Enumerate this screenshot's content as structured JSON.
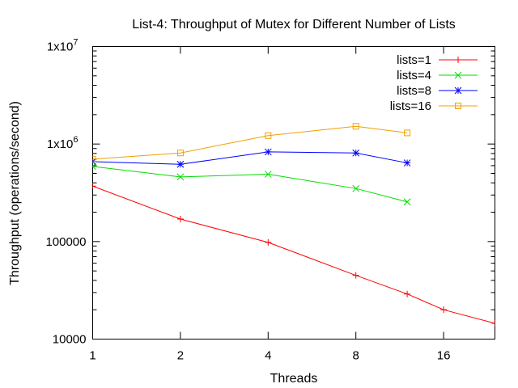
{
  "chart_data": {
    "type": "line",
    "title": "List-4: Throughput of Mutex for Different Number of Lists",
    "xlabel": "Threads",
    "ylabel": "Throughput (operations/second)",
    "x_scale": "log2",
    "y_scale": "log10",
    "xlim": [
      1,
      24
    ],
    "ylim": [
      10000,
      10000000
    ],
    "x_ticks": [
      {
        "value": 1,
        "label": "1"
      },
      {
        "value": 2,
        "label": "2"
      },
      {
        "value": 4,
        "label": "4"
      },
      {
        "value": 8,
        "label": "8"
      },
      {
        "value": 16,
        "label": "16"
      }
    ],
    "y_ticks": [
      {
        "value": 10000,
        "label": "10000",
        "exp": ""
      },
      {
        "value": 100000,
        "label": "100000",
        "exp": ""
      },
      {
        "value": 1000000,
        "label": "1x10",
        "exp": "6"
      },
      {
        "value": 10000000,
        "label": "1x10",
        "exp": "7"
      }
    ],
    "legend_position": "top-right",
    "grid": false,
    "series": [
      {
        "name": "lists=1",
        "color": "#ff0000",
        "marker": "plus",
        "x": [
          1,
          2,
          4,
          8,
          12,
          16,
          24
        ],
        "y": [
          370000,
          170000,
          98000,
          45000,
          29000,
          20000,
          14500
        ]
      },
      {
        "name": "lists=4",
        "color": "#00dd00",
        "marker": "cross",
        "x": [
          1,
          2,
          4,
          8,
          12
        ],
        "y": [
          590000,
          460000,
          490000,
          350000,
          255000
        ]
      },
      {
        "name": "lists=8",
        "color": "#0000ff",
        "marker": "star",
        "x": [
          1,
          2,
          4,
          8,
          12
        ],
        "y": [
          660000,
          620000,
          830000,
          810000,
          640000
        ]
      },
      {
        "name": "lists=16",
        "color": "#f0a000",
        "marker": "square",
        "x": [
          1,
          2,
          4,
          8,
          12
        ],
        "y": [
          700000,
          810000,
          1220000,
          1520000,
          1300000
        ]
      }
    ]
  }
}
